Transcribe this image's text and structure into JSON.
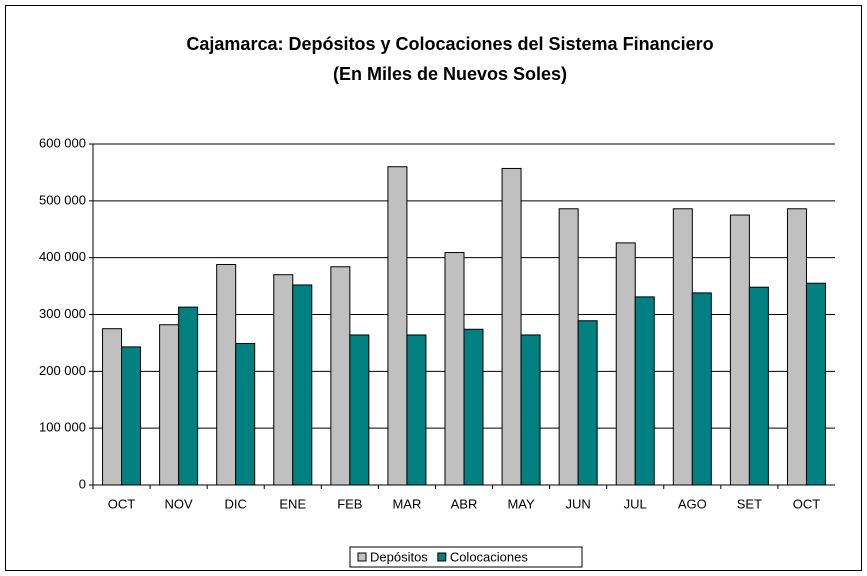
{
  "chart_data": {
    "type": "bar",
    "title": "Cajamarca: Depósitos y Colocaciones del Sistema Financiero",
    "subtitle": "(En Miles de Nuevos Soles)",
    "categories": [
      "OCT",
      "NOV",
      "DIC",
      "ENE",
      "FEB",
      "MAR",
      "ABR",
      "MAY",
      "JUN",
      "JUL",
      "AGO",
      "SET",
      "OCT"
    ],
    "series": [
      {
        "name": "Depósitos",
        "color": "#c0c0c0",
        "values": [
          275000,
          282000,
          388000,
          370000,
          384000,
          560000,
          409000,
          557000,
          486000,
          426000,
          486000,
          475000,
          486000
        ]
      },
      {
        "name": "Colocaciones",
        "color": "#008080",
        "values": [
          243000,
          313000,
          249000,
          352000,
          264000,
          264000,
          274000,
          264000,
          289000,
          331000,
          338000,
          348000,
          355000
        ]
      }
    ],
    "ylim": [
      0,
      600000
    ],
    "yticks": [
      0,
      {
        "value": 100000,
        "label": "100 000"
      },
      {
        "value": 200000,
        "label": "200 000"
      },
      {
        "value": 300000,
        "label": "300 000"
      },
      {
        "value": 400000,
        "label": "400 000"
      },
      {
        "value": 500000,
        "label": "500 000"
      },
      {
        "value": 600000,
        "label": "600 000"
      }
    ],
    "grid": true,
    "legend": "bottom"
  }
}
